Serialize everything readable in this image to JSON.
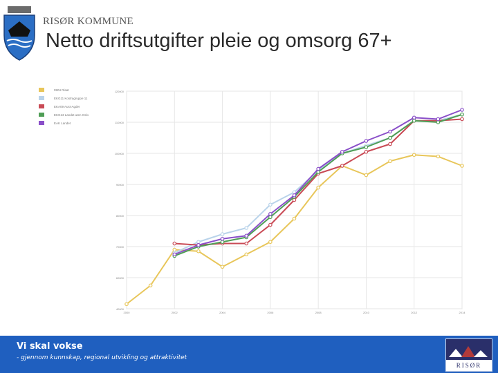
{
  "header": {
    "org_name": "RISØR KOMMUNE",
    "title": "Netto driftsutgifter pleie og omsorg 67+"
  },
  "footer": {
    "slogan": "Vi skal vokse",
    "subslogan": "- gjennom kunnskap, regional utvikling og attraktivitet",
    "badge_text": "RISØR"
  },
  "colors": {
    "footer_bg": "#1f5fbf",
    "grid": "#e6e6e6"
  },
  "chart_data": {
    "type": "line",
    "title": "",
    "xlabel": "",
    "ylabel": "",
    "x": [
      2000,
      2001,
      2002,
      2003,
      2004,
      2005,
      2006,
      2007,
      2008,
      2009,
      2010,
      2011,
      2012,
      2013,
      2014
    ],
    "xticks": [
      "2000",
      "2002",
      "2004",
      "2006",
      "2008",
      "2010",
      "2012",
      "2014"
    ],
    "yticks": [
      "40000",
      "60000",
      "70000",
      "80000",
      "90000",
      "100000",
      "110000",
      "120000"
    ],
    "ylim": [
      50000,
      120000
    ],
    "grid": true,
    "legend_position": "top-left",
    "series": [
      {
        "name": "0904 Risør",
        "color": "#e8c65a",
        "values": [
          51500,
          57500,
          69000,
          68500,
          63500,
          67500,
          71500,
          79000,
          89000,
          96000,
          93000,
          97500,
          99500,
          99000,
          96000
        ]
      },
      {
        "name": "EKG11 Kostragruppe 11",
        "color": "#b9d3ea",
        "values": [
          null,
          null,
          68000,
          71500,
          74000,
          76000,
          83500,
          87500,
          94500,
          100000,
          102500,
          105000,
          110500,
          110500,
          112500
        ]
      },
      {
        "name": "EKA09 Aust-Agder",
        "color": "#c94a55",
        "values": [
          null,
          null,
          71000,
          70500,
          71000,
          71000,
          77000,
          85000,
          93500,
          96000,
          100500,
          103000,
          110500,
          110500,
          111000
        ]
      },
      {
        "name": "EKG13 Landet uten Oslo",
        "color": "#4f9e56",
        "values": [
          null,
          null,
          67000,
          70000,
          71500,
          73000,
          79500,
          86000,
          94000,
          100000,
          102000,
          105000,
          110500,
          110000,
          112500
        ]
      },
      {
        "name": "EAK Landet",
        "color": "#8a4fc9",
        "values": [
          null,
          null,
          67500,
          70500,
          72500,
          73500,
          80500,
          86500,
          95000,
          100500,
          104000,
          107000,
          111500,
          111000,
          114000
        ]
      }
    ]
  }
}
